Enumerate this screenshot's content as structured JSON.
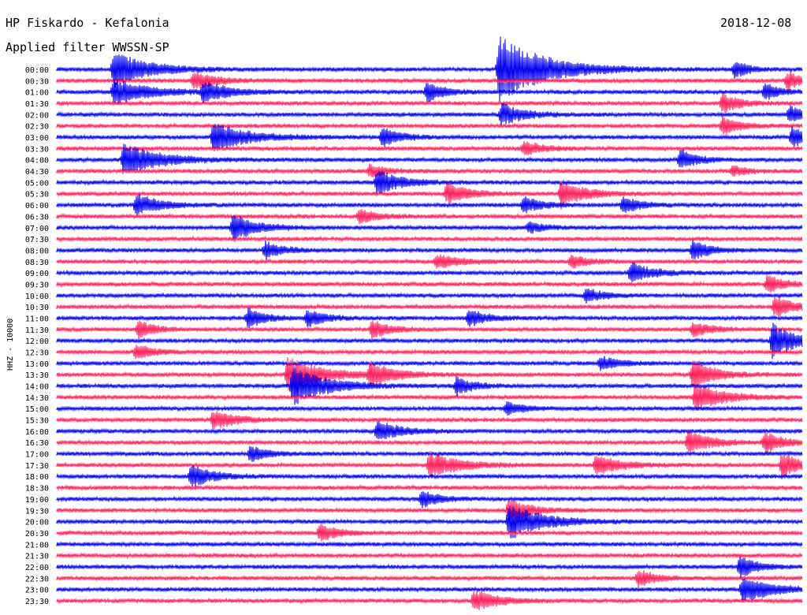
{
  "header": {
    "station_title": "HP Fiskardo - Kefalonia",
    "date": "2018-12-08",
    "filter": "Applied filter WWSSN-SP"
  },
  "chart_data": {
    "type": "line",
    "title": "HP Fiskardo - Kefalonia",
    "date": "2018-12-08",
    "filter": "WWSSN-SP",
    "ylabel": "HHZ - 10000",
    "row_interval_minutes": 30,
    "row_labels": [
      "00:00",
      "00:30",
      "01:00",
      "01:30",
      "02:00",
      "02:30",
      "03:00",
      "03:30",
      "04:00",
      "04:30",
      "05:00",
      "05:30",
      "06:00",
      "06:30",
      "07:00",
      "07:30",
      "08:00",
      "08:30",
      "09:00",
      "09:30",
      "10:00",
      "10:30",
      "11:00",
      "11:30",
      "12:00",
      "12:30",
      "13:00",
      "13:30",
      "14:00",
      "14:30",
      "15:00",
      "15:30",
      "16:00",
      "16:30",
      "17:00",
      "17:30",
      "18:00",
      "18:30",
      "19:00",
      "19:30",
      "20:00",
      "20:30",
      "21:00",
      "21:30",
      "22:00",
      "22:30",
      "23:00",
      "23:30"
    ],
    "colors": [
      "#0000ee",
      "#ff1f5a"
    ],
    "color_pattern": "alternating by row, starting blue at 00:00",
    "events": [
      {
        "row": 0,
        "minute": 2.3,
        "amp": 1.6,
        "dur": 3
      },
      {
        "row": 0,
        "minute": 17.8,
        "amp": 3.0,
        "dur": 4
      },
      {
        "row": 0,
        "minute": 27.3,
        "amp": 0.8,
        "dur": 1.2
      },
      {
        "row": 1,
        "minute": 5.5,
        "amp": 0.8,
        "dur": 2
      },
      {
        "row": 1,
        "minute": 29.4,
        "amp": 0.9,
        "dur": 1
      },
      {
        "row": 2,
        "minute": 2.3,
        "amp": 1.2,
        "dur": 3
      },
      {
        "row": 2,
        "minute": 5.9,
        "amp": 1.0,
        "dur": 2
      },
      {
        "row": 2,
        "minute": 14.9,
        "amp": 0.9,
        "dur": 1.5
      },
      {
        "row": 2,
        "minute": 28.5,
        "amp": 0.8,
        "dur": 1.2
      },
      {
        "row": 3,
        "minute": 26.8,
        "amp": 0.9,
        "dur": 1.5
      },
      {
        "row": 4,
        "minute": 17.9,
        "amp": 1.0,
        "dur": 2
      },
      {
        "row": 4,
        "minute": 29.5,
        "amp": 0.8,
        "dur": 1.2
      },
      {
        "row": 5,
        "minute": 26.8,
        "amp": 0.8,
        "dur": 1.5
      },
      {
        "row": 6,
        "minute": 6.3,
        "amp": 1.3,
        "dur": 3
      },
      {
        "row": 6,
        "minute": 13.1,
        "amp": 0.9,
        "dur": 1.5
      },
      {
        "row": 6,
        "minute": 29.6,
        "amp": 1.0,
        "dur": 1.2
      },
      {
        "row": 7,
        "minute": 18.8,
        "amp": 0.7,
        "dur": 1.5
      },
      {
        "row": 8,
        "minute": 2.7,
        "amp": 1.6,
        "dur": 3
      },
      {
        "row": 8,
        "minute": 25.1,
        "amp": 0.9,
        "dur": 1.5
      },
      {
        "row": 9,
        "minute": 12.6,
        "amp": 0.6,
        "dur": 1.5
      },
      {
        "row": 9,
        "minute": 27.2,
        "amp": 0.5,
        "dur": 1.2
      },
      {
        "row": 10,
        "minute": 12.9,
        "amp": 1.2,
        "dur": 2
      },
      {
        "row": 11,
        "minute": 15.7,
        "amp": 0.9,
        "dur": 2
      },
      {
        "row": 11,
        "minute": 20.3,
        "amp": 1.3,
        "dur": 2
      },
      {
        "row": 12,
        "minute": 3.2,
        "amp": 1.0,
        "dur": 2
      },
      {
        "row": 12,
        "minute": 18.8,
        "amp": 0.8,
        "dur": 1.5
      },
      {
        "row": 12,
        "minute": 22.8,
        "amp": 0.8,
        "dur": 1.5
      },
      {
        "row": 13,
        "minute": 12.2,
        "amp": 0.7,
        "dur": 1.5
      },
      {
        "row": 14,
        "minute": 7.1,
        "amp": 1.2,
        "dur": 2
      },
      {
        "row": 14,
        "minute": 19.0,
        "amp": 0.5,
        "dur": 1.5
      },
      {
        "row": 16,
        "minute": 8.4,
        "amp": 0.8,
        "dur": 1.5
      },
      {
        "row": 16,
        "minute": 25.6,
        "amp": 0.9,
        "dur": 1.5
      },
      {
        "row": 17,
        "minute": 15.3,
        "amp": 0.7,
        "dur": 2
      },
      {
        "row": 17,
        "minute": 20.7,
        "amp": 0.6,
        "dur": 1.5
      },
      {
        "row": 18,
        "minute": 23.1,
        "amp": 0.9,
        "dur": 2
      },
      {
        "row": 19,
        "minute": 28.6,
        "amp": 0.8,
        "dur": 1.5
      },
      {
        "row": 20,
        "minute": 21.3,
        "amp": 0.7,
        "dur": 1.5
      },
      {
        "row": 21,
        "minute": 28.9,
        "amp": 1.0,
        "dur": 1.5
      },
      {
        "row": 22,
        "minute": 7.7,
        "amp": 0.9,
        "dur": 1.5
      },
      {
        "row": 22,
        "minute": 10.1,
        "amp": 0.8,
        "dur": 1.5
      },
      {
        "row": 22,
        "minute": 16.6,
        "amp": 0.8,
        "dur": 1.5
      },
      {
        "row": 23,
        "minute": 3.3,
        "amp": 0.8,
        "dur": 1.5
      },
      {
        "row": 23,
        "minute": 12.7,
        "amp": 0.9,
        "dur": 1.5
      },
      {
        "row": 23,
        "minute": 25.6,
        "amp": 0.7,
        "dur": 1.5
      },
      {
        "row": 24,
        "minute": 28.8,
        "amp": 1.6,
        "dur": 2
      },
      {
        "row": 25,
        "minute": 3.2,
        "amp": 0.7,
        "dur": 1.5
      },
      {
        "row": 26,
        "minute": 21.9,
        "amp": 0.7,
        "dur": 1.5
      },
      {
        "row": 27,
        "minute": 9.3,
        "amp": 1.6,
        "dur": 3
      },
      {
        "row": 27,
        "minute": 12.6,
        "amp": 1.1,
        "dur": 2
      },
      {
        "row": 27,
        "minute": 25.6,
        "amp": 1.3,
        "dur": 2
      },
      {
        "row": 28,
        "minute": 9.5,
        "amp": 1.7,
        "dur": 3
      },
      {
        "row": 28,
        "minute": 16.1,
        "amp": 0.8,
        "dur": 1.5
      },
      {
        "row": 29,
        "minute": 25.7,
        "amp": 1.2,
        "dur": 2.5
      },
      {
        "row": 30,
        "minute": 18.1,
        "amp": 0.6,
        "dur": 1.5
      },
      {
        "row": 31,
        "minute": 6.3,
        "amp": 0.9,
        "dur": 2
      },
      {
        "row": 32,
        "minute": 12.9,
        "amp": 1.0,
        "dur": 2
      },
      {
        "row": 33,
        "minute": 25.4,
        "amp": 1.1,
        "dur": 2
      },
      {
        "row": 33,
        "minute": 28.5,
        "amp": 1.0,
        "dur": 1.5
      },
      {
        "row": 34,
        "minute": 7.8,
        "amp": 0.7,
        "dur": 1.5
      },
      {
        "row": 35,
        "minute": 15.0,
        "amp": 1.2,
        "dur": 2.5
      },
      {
        "row": 35,
        "minute": 21.7,
        "amp": 1.0,
        "dur": 2
      },
      {
        "row": 35,
        "minute": 29.2,
        "amp": 1.2,
        "dur": 1.5
      },
      {
        "row": 36,
        "minute": 5.4,
        "amp": 1.0,
        "dur": 2
      },
      {
        "row": 38,
        "minute": 14.7,
        "amp": 0.8,
        "dur": 1.5
      },
      {
        "row": 39,
        "minute": 18.2,
        "amp": 1.0,
        "dur": 2
      },
      {
        "row": 40,
        "minute": 18.2,
        "amp": 1.6,
        "dur": 3
      },
      {
        "row": 41,
        "minute": 10.6,
        "amp": 0.8,
        "dur": 1.5
      },
      {
        "row": 44,
        "minute": 27.5,
        "amp": 1.0,
        "dur": 1.5
      },
      {
        "row": 45,
        "minute": 23.4,
        "amp": 0.8,
        "dur": 1.5
      },
      {
        "row": 46,
        "minute": 27.6,
        "amp": 1.2,
        "dur": 2.5
      },
      {
        "row": 47,
        "minute": 16.8,
        "amp": 1.0,
        "dur": 2
      }
    ]
  }
}
